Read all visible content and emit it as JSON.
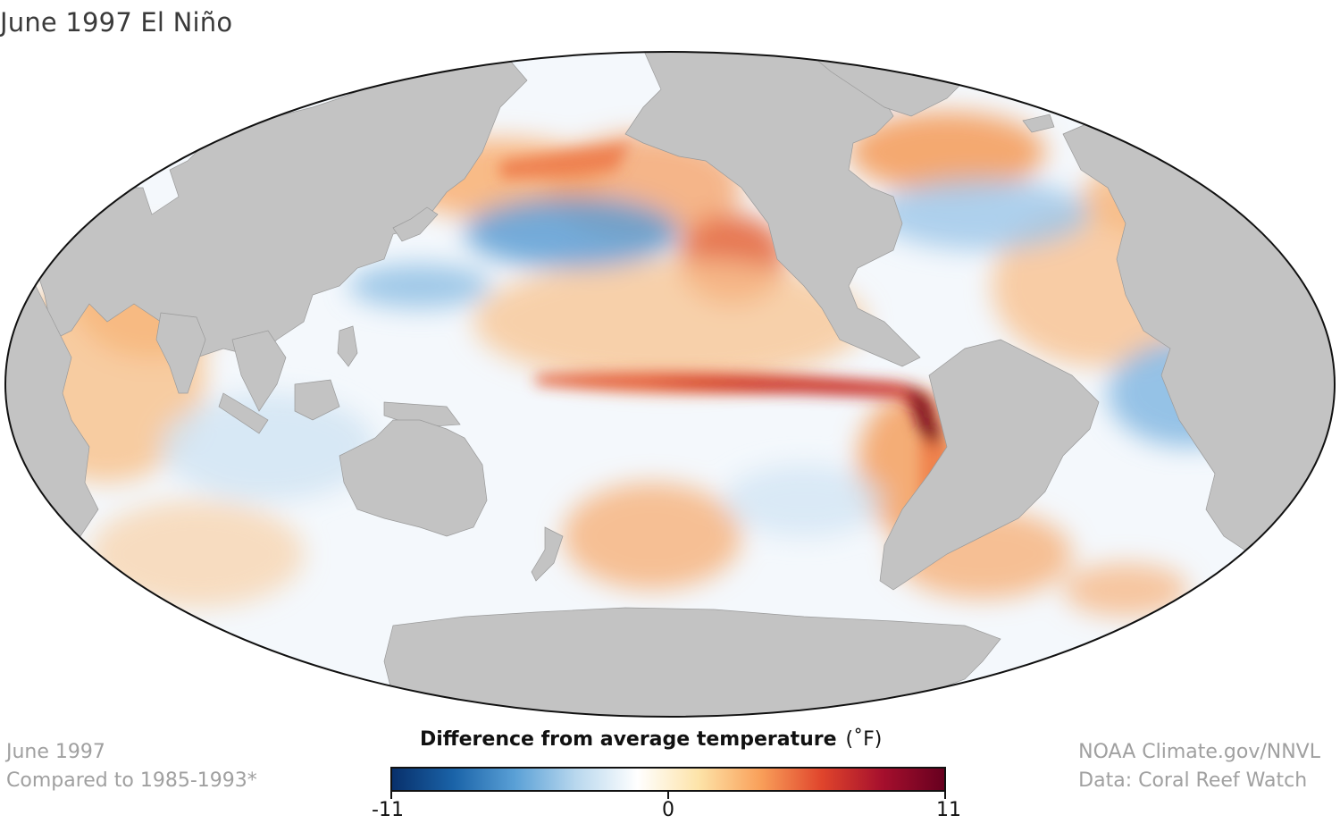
{
  "title": "June 1997 El Niño",
  "footer_left": {
    "line1": "June 1997",
    "line2": "Compared to 1985-1993*"
  },
  "footer_right": {
    "line1": "NOAA Climate.gov/NNVL",
    "line2": "Data: Coral Reef Watch"
  },
  "legend": {
    "title": "Difference from average temperature",
    "unit": "(˚F)",
    "min": -11,
    "mid": 0,
    "max": 11,
    "min_label": "-11",
    "mid_label": "0",
    "max_label": "11",
    "colors": [
      "#08306b",
      "#1a63a8",
      "#5aa0d6",
      "#b9d8ee",
      "#ffffff",
      "#fde3a8",
      "#f9a05a",
      "#e0452c",
      "#a50f2d",
      "#67001f"
    ]
  },
  "map": {
    "projection": "Mollweide, Pacific-centered",
    "land_color": "#c2c2c2",
    "ocean_neutral_color": "#f7fbff",
    "outline_color": "#111111"
  }
}
